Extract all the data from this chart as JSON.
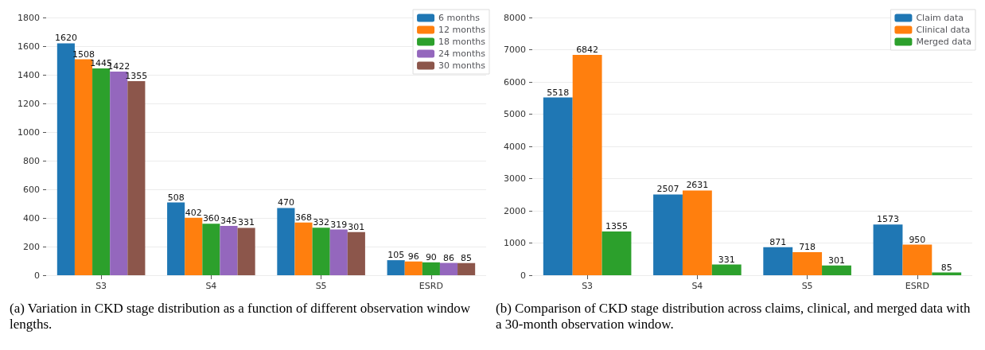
{
  "chart_data": [
    {
      "type": "bar",
      "categories": [
        "S3",
        "S4",
        "S5",
        "ESRD"
      ],
      "ylim": [
        0,
        1800
      ],
      "yticks": [
        0,
        200,
        400,
        600,
        800,
        1000,
        1200,
        1400,
        1600,
        1800
      ],
      "grid": "y",
      "legend": "top right",
      "data_labels": true,
      "series": [
        {
          "name": "6 months",
          "color": "#1f77b4",
          "values": [
            1620,
            508,
            470,
            105
          ]
        },
        {
          "name": "12 months",
          "color": "#ff7f0e",
          "values": [
            1508,
            402,
            368,
            96
          ]
        },
        {
          "name": "18 months",
          "color": "#2ca02c",
          "values": [
            1445,
            360,
            332,
            90
          ]
        },
        {
          "name": "24 months",
          "color": "#9467bd",
          "values": [
            1422,
            345,
            319,
            86
          ]
        },
        {
          "name": "30 months",
          "color": "#8c564b",
          "values": [
            1355,
            331,
            301,
            85
          ]
        }
      ],
      "annotations": [
        "(a) Variation in CKD stage distribution as a function of different observation window lengths."
      ]
    },
    {
      "type": "bar",
      "categories": [
        "S3",
        "S4",
        "S5",
        "ESRD"
      ],
      "ylim": [
        0,
        8000
      ],
      "yticks": [
        0,
        1000,
        2000,
        3000,
        4000,
        5000,
        6000,
        7000,
        8000
      ],
      "grid": "y",
      "legend": "top right",
      "data_labels": true,
      "series": [
        {
          "name": "Claim data",
          "color": "#1f77b4",
          "values": [
            5518,
            2507,
            871,
            1573
          ]
        },
        {
          "name": "Clinical data",
          "color": "#ff7f0e",
          "values": [
            6842,
            2631,
            718,
            950
          ]
        },
        {
          "name": "Merged data",
          "color": "#2ca02c",
          "values": [
            1355,
            331,
            301,
            85
          ]
        }
      ],
      "annotations": [
        "(b) Comparison of CKD stage distribution across claims, clinical, and merged data with a 30-month observation window."
      ]
    }
  ]
}
